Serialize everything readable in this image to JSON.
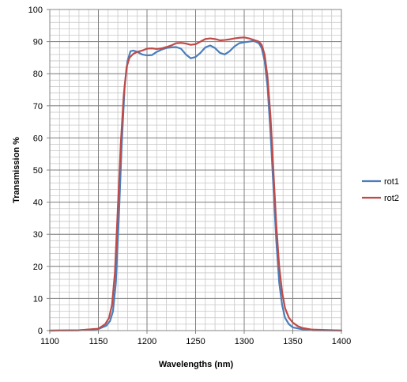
{
  "chart_data": {
    "type": "line",
    "title": "",
    "xlabel": "Wavelengths (nm)",
    "ylabel": "Transmission %",
    "xlim": [
      1100,
      1400
    ],
    "ylim": [
      0,
      100
    ],
    "x_ticks": [
      1100,
      1150,
      1200,
      1250,
      1300,
      1350,
      1400
    ],
    "y_ticks": [
      0,
      10,
      20,
      30,
      40,
      50,
      60,
      70,
      80,
      90,
      100
    ],
    "x_minor_step": 10,
    "y_minor_step": 2,
    "grid": true,
    "legend_position": "right",
    "series": [
      {
        "name": "rot1",
        "color": "#4a7ebb",
        "points": [
          [
            1100,
            0
          ],
          [
            1130,
            0.1
          ],
          [
            1150,
            0.5
          ],
          [
            1158,
            1.5
          ],
          [
            1162,
            3
          ],
          [
            1165,
            6
          ],
          [
            1168,
            15
          ],
          [
            1171,
            35
          ],
          [
            1174,
            58
          ],
          [
            1177,
            76
          ],
          [
            1180,
            84
          ],
          [
            1183,
            87
          ],
          [
            1186,
            87.2
          ],
          [
            1190,
            86.8
          ],
          [
            1195,
            86
          ],
          [
            1200,
            85.7
          ],
          [
            1205,
            85.8
          ],
          [
            1210,
            86.8
          ],
          [
            1215,
            87.5
          ],
          [
            1220,
            88
          ],
          [
            1225,
            88.2
          ],
          [
            1230,
            88.3
          ],
          [
            1235,
            87.8
          ],
          [
            1240,
            86
          ],
          [
            1245,
            84.8
          ],
          [
            1250,
            85.2
          ],
          [
            1255,
            86.5
          ],
          [
            1260,
            88.2
          ],
          [
            1265,
            88.8
          ],
          [
            1270,
            88
          ],
          [
            1275,
            86.5
          ],
          [
            1280,
            86
          ],
          [
            1285,
            87
          ],
          [
            1290,
            88.5
          ],
          [
            1295,
            89.5
          ],
          [
            1300,
            89.8
          ],
          [
            1305,
            90
          ],
          [
            1310,
            90.2
          ],
          [
            1315,
            89.5
          ],
          [
            1318,
            88
          ],
          [
            1321,
            84
          ],
          [
            1324,
            76
          ],
          [
            1327,
            62
          ],
          [
            1330,
            45
          ],
          [
            1333,
            28
          ],
          [
            1336,
            15
          ],
          [
            1339,
            8
          ],
          [
            1342,
            4
          ],
          [
            1346,
            2
          ],
          [
            1350,
            1
          ],
          [
            1360,
            0.4
          ],
          [
            1370,
            0.1
          ],
          [
            1400,
            0
          ]
        ]
      },
      {
        "name": "rot2",
        "color": "#be4b48",
        "points": [
          [
            1100,
            0
          ],
          [
            1130,
            0.1
          ],
          [
            1150,
            0.6
          ],
          [
            1157,
            2
          ],
          [
            1161,
            4
          ],
          [
            1164,
            8
          ],
          [
            1167,
            18
          ],
          [
            1170,
            38
          ],
          [
            1173,
            58
          ],
          [
            1176,
            73
          ],
          [
            1179,
            82
          ],
          [
            1182,
            85
          ],
          [
            1186,
            86.2
          ],
          [
            1190,
            86.8
          ],
          [
            1195,
            87.2
          ],
          [
            1200,
            87.8
          ],
          [
            1205,
            87.9
          ],
          [
            1210,
            87.7
          ],
          [
            1215,
            87.9
          ],
          [
            1220,
            88.3
          ],
          [
            1225,
            88.8
          ],
          [
            1230,
            89.5
          ],
          [
            1235,
            89.6
          ],
          [
            1240,
            89.4
          ],
          [
            1245,
            89
          ],
          [
            1250,
            89.2
          ],
          [
            1255,
            90
          ],
          [
            1260,
            90.8
          ],
          [
            1265,
            91
          ],
          [
            1270,
            90.8
          ],
          [
            1275,
            90.4
          ],
          [
            1280,
            90.5
          ],
          [
            1285,
            90.7
          ],
          [
            1290,
            91
          ],
          [
            1295,
            91.2
          ],
          [
            1300,
            91.3
          ],
          [
            1305,
            91
          ],
          [
            1310,
            90.5
          ],
          [
            1315,
            90
          ],
          [
            1318,
            89
          ],
          [
            1321,
            86
          ],
          [
            1324,
            79
          ],
          [
            1327,
            67
          ],
          [
            1330,
            50
          ],
          [
            1333,
            33
          ],
          [
            1336,
            20
          ],
          [
            1339,
            12
          ],
          [
            1342,
            7
          ],
          [
            1346,
            4
          ],
          [
            1350,
            2.5
          ],
          [
            1355,
            1.4
          ],
          [
            1360,
            0.8
          ],
          [
            1370,
            0.3
          ],
          [
            1400,
            0.05
          ]
        ]
      }
    ]
  }
}
